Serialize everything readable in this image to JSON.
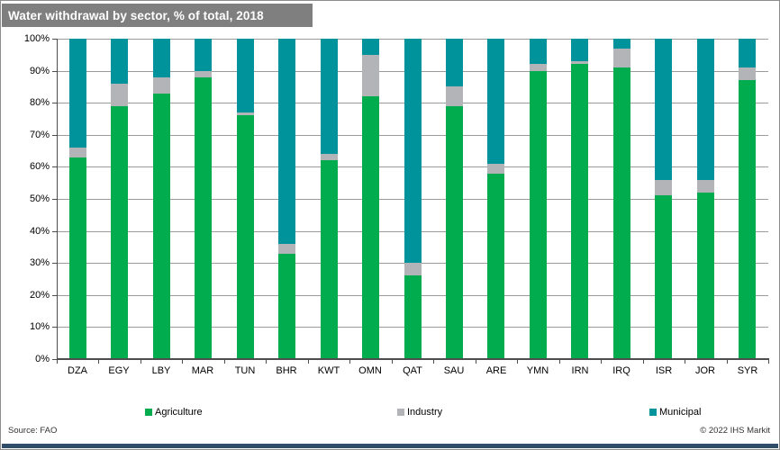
{
  "title": "Water withdrawal by sector, % of total, 2018",
  "footer": {
    "source": "Source: FAO",
    "copyright": "© 2022 IHS Markit"
  },
  "colors": {
    "title_bar": "#7f7f7f",
    "footer_bar": "#2f4d68",
    "gridline": "#9b9b9b",
    "axis": "#4d4d4d",
    "background": "#ffffff"
  },
  "chart_data": {
    "type": "bar",
    "stacked": true,
    "title": "Water withdrawal by sector, % of total, 2018",
    "xlabel": "",
    "ylabel": "% of total",
    "ylim": [
      0,
      100
    ],
    "grid": true,
    "legend_position": "bottom",
    "y_tick_labels": [
      "0%",
      "10%",
      "20%",
      "30%",
      "40%",
      "50%",
      "60%",
      "70%",
      "80%",
      "90%",
      "100%"
    ],
    "categories": [
      "DZA",
      "EGY",
      "LBY",
      "MAR",
      "TUN",
      "BHR",
      "KWT",
      "OMN",
      "QAT",
      "SAU",
      "ARE",
      "YMN",
      "IRN",
      "IRQ",
      "ISR",
      "JOR",
      "SYR"
    ],
    "series": [
      {
        "name": "Agriculture",
        "color": "#00ac4e",
        "values": [
          63,
          79,
          83,
          88,
          76,
          33,
          62,
          82,
          26,
          79,
          58,
          90,
          92,
          91,
          51,
          52,
          87
        ]
      },
      {
        "name": "Industry",
        "color": "#b2b4b7",
        "values": [
          3,
          7,
          5,
          2,
          1,
          3,
          2,
          13,
          4,
          6,
          3,
          2,
          1,
          6,
          5,
          4,
          4
        ]
      },
      {
        "name": "Municipal",
        "color": "#00939b",
        "values": [
          34,
          14,
          12,
          10,
          23,
          64,
          36,
          5,
          70,
          15,
          39,
          8,
          7,
          3,
          44,
          44,
          9
        ]
      }
    ]
  }
}
